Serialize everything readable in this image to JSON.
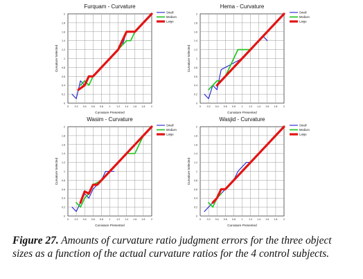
{
  "colors": {
    "small": "#1f1fd0",
    "medium": "#22c61f",
    "large": "#e21414"
  },
  "caption": {
    "label": "Figure 27.",
    "text": " Amounts of curvature ratio judgment errors for the three object sizes as a function of the actual curvature ratios for the 4 control subjects."
  },
  "chart_data": [
    {
      "type": "line",
      "title": "Furquam - Curvature",
      "xlabel": "Curvature Presented",
      "ylabel": "Curvature Selected",
      "xlim": [
        0,
        2
      ],
      "ylim": [
        0,
        2
      ],
      "xticks": [
        "0",
        "0.2",
        "0.4",
        "0.6",
        "0.8",
        "1",
        "1.2",
        "1.4",
        "1.6",
        "1.8",
        "2"
      ],
      "yticks": [
        "0",
        "0.2",
        "0.4",
        "0.6",
        "0.8",
        "1",
        "1.2",
        "1.4",
        "1.6",
        "1.8",
        "2"
      ],
      "legend": "top-right",
      "series": [
        {
          "name": "Small",
          "color": "#1f1fd0",
          "x": [
            0.1,
            0.2,
            0.3,
            0.4,
            0.5,
            0.6,
            0.8,
            1.0,
            1.1,
            1.2,
            1.3,
            1.4,
            1.5,
            1.6
          ],
          "y": [
            0.2,
            0.1,
            0.5,
            0.4,
            0.6,
            0.6,
            0.8,
            1.0,
            1.1,
            1.2,
            1.3,
            1.6,
            1.6,
            1.6
          ]
        },
        {
          "name": "Medium",
          "color": "#22c61f",
          "x": [
            0.3,
            0.4,
            0.5,
            0.6,
            0.8,
            1.0,
            1.2,
            1.4,
            1.5,
            1.6
          ],
          "y": [
            0.4,
            0.5,
            0.4,
            0.6,
            0.8,
            1.0,
            1.2,
            1.4,
            1.4,
            1.6
          ]
        },
        {
          "name": "Large",
          "color": "#e21414",
          "x": [
            0.25,
            0.4,
            0.5,
            0.6,
            0.8,
            1.0,
            1.2,
            1.3,
            1.4,
            1.6,
            2.0
          ],
          "y": [
            0.3,
            0.4,
            0.6,
            0.6,
            0.8,
            1.0,
            1.2,
            1.4,
            1.6,
            1.6,
            2.0
          ]
        }
      ]
    },
    {
      "type": "line",
      "title": "Hema - Curvature",
      "xlabel": "Curvature Presented",
      "ylabel": "Curvature Selected",
      "xlim": [
        0,
        2
      ],
      "ylim": [
        0,
        2
      ],
      "xticks": [
        "0",
        "0.2",
        "0.4",
        "0.6",
        "0.8",
        "1",
        "1.2",
        "1.4",
        "1.6",
        "1.8",
        "2"
      ],
      "yticks": [
        "0",
        "0.2",
        "0.4",
        "0.6",
        "0.8",
        "1",
        "1.2",
        "1.4",
        "1.6",
        "1.8",
        "2"
      ],
      "legend": "top-right",
      "series": [
        {
          "name": "Small",
          "color": "#1f1fd0",
          "x": [
            0.1,
            0.2,
            0.3,
            0.4,
            0.5,
            0.6,
            0.8,
            1.0,
            1.2,
            1.4,
            1.5,
            1.6
          ],
          "y": [
            0.2,
            0.1,
            0.4,
            0.3,
            0.75,
            0.8,
            0.9,
            1.0,
            1.2,
            1.4,
            1.5,
            1.4
          ]
        },
        {
          "name": "Medium",
          "color": "#22c61f",
          "x": [
            0.2,
            0.3,
            0.4,
            0.5,
            0.6,
            0.8,
            0.9,
            1.0,
            1.2
          ],
          "y": [
            0.3,
            0.4,
            0.5,
            0.5,
            0.6,
            1.0,
            1.2,
            1.2,
            1.2
          ]
        },
        {
          "name": "Large",
          "color": "#e21414",
          "x": [
            0.4,
            0.5,
            0.6,
            0.8,
            1.0,
            1.2,
            1.4,
            1.6,
            1.8,
            2.0
          ],
          "y": [
            0.4,
            0.5,
            0.6,
            0.8,
            1.0,
            1.2,
            1.4,
            1.6,
            1.8,
            2.0
          ]
        }
      ]
    },
    {
      "type": "line",
      "title": "Wasim - Curvature",
      "xlabel": "Curvature Presented",
      "ylabel": "Curvature Selected",
      "xlim": [
        0,
        2
      ],
      "ylim": [
        0,
        2
      ],
      "xticks": [
        "0",
        "0.2",
        "0.4",
        "0.6",
        "0.8",
        "1",
        "1.2",
        "1.4",
        "1.6",
        "1.8",
        "2"
      ],
      "yticks": [
        "0",
        "0.2",
        "0.4",
        "0.6",
        "0.8",
        "1",
        "1.2",
        "1.4",
        "1.6",
        "1.8",
        "2"
      ],
      "legend": "top-right",
      "series": [
        {
          "name": "Small",
          "color": "#1f1fd0",
          "x": [
            0.1,
            0.2,
            0.3,
            0.4,
            0.5,
            0.6,
            0.8,
            0.9,
            1.0,
            1.1
          ],
          "y": [
            0.2,
            0.1,
            0.3,
            0.5,
            0.4,
            0.6,
            0.8,
            1.0,
            1.0,
            1.0
          ]
        },
        {
          "name": "Medium",
          "color": "#22c61f",
          "x": [
            0.2,
            0.3,
            0.4,
            0.5,
            0.6,
            0.8,
            1.0,
            1.2,
            1.4,
            1.6,
            1.8
          ],
          "y": [
            0.3,
            0.2,
            0.4,
            0.5,
            0.7,
            0.8,
            1.0,
            1.2,
            1.4,
            1.4,
            1.8
          ]
        },
        {
          "name": "Large",
          "color": "#e21414",
          "x": [
            0.3,
            0.4,
            0.5,
            0.55,
            0.6,
            0.7,
            0.8,
            1.0,
            1.2,
            1.4,
            1.6,
            1.8,
            2.0
          ],
          "y": [
            0.3,
            0.55,
            0.5,
            0.6,
            0.7,
            0.7,
            0.8,
            1.0,
            1.2,
            1.4,
            1.6,
            1.8,
            2.0
          ]
        }
      ]
    },
    {
      "type": "line",
      "title": "Wasjid - Curvature",
      "xlabel": "Curvature Presented",
      "ylabel": "Curvature Selected",
      "xlim": [
        0,
        2
      ],
      "ylim": [
        0,
        2
      ],
      "xticks": [
        "0",
        "0.2",
        "0.4",
        "0.6",
        "0.8",
        "1",
        "1.2",
        "1.4",
        "1.6",
        "1.8",
        "2"
      ],
      "yticks": [
        "0",
        "0.2",
        "0.4",
        "0.6",
        "0.8",
        "1",
        "1.2",
        "1.4",
        "1.6",
        "1.8",
        "2"
      ],
      "legend": "top-right",
      "series": [
        {
          "name": "Small",
          "color": "#1f1fd0",
          "x": [
            0.1,
            0.2,
            0.3,
            0.4,
            0.5,
            0.6,
            0.8,
            0.9,
            1.0,
            1.1,
            1.2
          ],
          "y": [
            0.1,
            0.2,
            0.3,
            0.4,
            0.5,
            0.6,
            0.8,
            1.0,
            1.1,
            1.2,
            1.2
          ]
        },
        {
          "name": "Medium",
          "color": "#22c61f",
          "x": [
            0.2,
            0.3,
            0.4,
            0.5
          ],
          "y": [
            0.3,
            0.2,
            0.4,
            0.5
          ]
        },
        {
          "name": "Large",
          "color": "#e21414",
          "x": [
            0.3,
            0.4,
            0.5,
            0.6,
            0.8,
            1.0,
            1.2,
            1.4,
            1.6,
            1.8,
            2.0
          ],
          "y": [
            0.3,
            0.4,
            0.6,
            0.6,
            0.8,
            1.0,
            1.2,
            1.4,
            1.6,
            1.8,
            2.0
          ]
        }
      ]
    }
  ]
}
